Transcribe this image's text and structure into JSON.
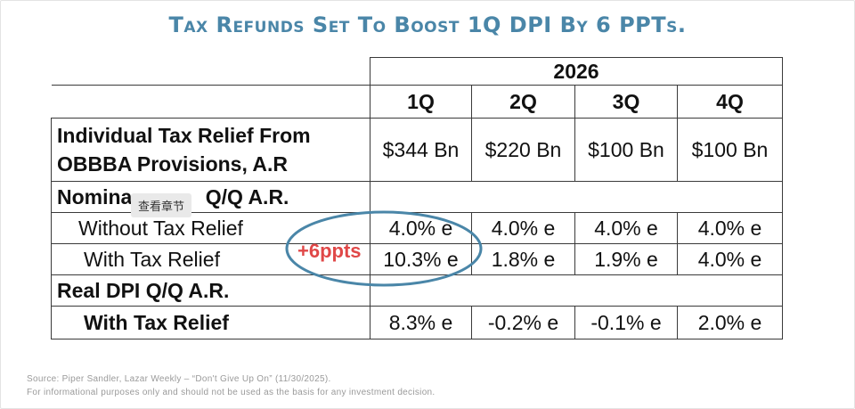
{
  "title": "Tax Refunds Set To Boost 1Q DPI By 6 PPTs.",
  "table": {
    "year": "2026",
    "quarters": [
      "1Q",
      "2Q",
      "3Q",
      "4Q"
    ],
    "rows": {
      "relief_label_1": "Individual Tax Relief From",
      "relief_label_2": "OBBBA Provisions, A.R",
      "relief_values": [
        "$344 Bn",
        "$220 Bn",
        "$100 Bn",
        "$100 Bn"
      ],
      "nominal_label_a": "Nomina",
      "nominal_label_b": " Q/Q A.R.",
      "without_label": "Without Tax Relief",
      "without_values": [
        "4.0% e",
        "4.0% e",
        "4.0% e",
        "4.0% e"
      ],
      "with_label": "With Tax Relief",
      "with_values": [
        "10.3% e",
        "1.8% e",
        "1.9% e",
        "4.0% e"
      ],
      "real_label": "Real DPI Q/Q A.R.",
      "real_with_label": "With Tax Relief",
      "real_with_values": [
        "8.3% e",
        "-0.2% e",
        "-0.1% e",
        "2.0% e"
      ]
    }
  },
  "annotation": {
    "text": "+6ppts",
    "color": "#e04848",
    "ellipse_color": "#4a86a8"
  },
  "tooltip": {
    "text": "查看章节"
  },
  "source": {
    "line1": "Source: Piper Sandler, Lazar Weekly – “Don't Give Up On” (11/30/2025).",
    "line2": "For informational purposes only and should not be used as the basis for any investment decision."
  }
}
